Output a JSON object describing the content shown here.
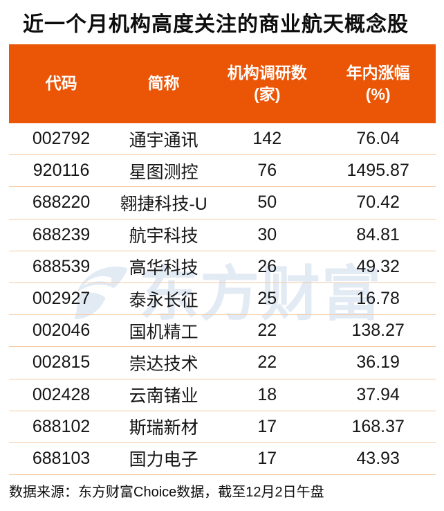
{
  "title": "近一个月机构高度关注的商业航天概念股",
  "chart_data": {
    "type": "table",
    "title": "近一个月机构高度关注的商业航天概念股",
    "columns": [
      {
        "label": "代码",
        "sub": ""
      },
      {
        "label": "简称",
        "sub": ""
      },
      {
        "label": "机构调研数",
        "sub": "(家)"
      },
      {
        "label": "年内涨幅",
        "sub": "(%)"
      }
    ],
    "rows": [
      [
        "002792",
        "通宇通讯",
        "142",
        "76.04"
      ],
      [
        "920116",
        "星图测控",
        "76",
        "1495.87"
      ],
      [
        "688220",
        "翱捷科技-U",
        "50",
        "70.42"
      ],
      [
        "688239",
        "航宇科技",
        "30",
        "84.81"
      ],
      [
        "688539",
        "高华科技",
        "26",
        "49.32"
      ],
      [
        "002927",
        "泰永长征",
        "25",
        "16.78"
      ],
      [
        "002046",
        "国机精工",
        "22",
        "138.27"
      ],
      [
        "002815",
        "崇达技术",
        "22",
        "36.19"
      ],
      [
        "002428",
        "云南锗业",
        "18",
        "37.94"
      ],
      [
        "688102",
        "斯瑞新材",
        "17",
        "168.37"
      ],
      [
        "688103",
        "国力电子",
        "17",
        "43.93"
      ]
    ],
    "source_note": "数据来源：东方财富Choice数据，截至12月2日午盘"
  },
  "watermark": {
    "text": "东方财富"
  },
  "colors": {
    "header_bg": "#EA5506",
    "header_text": "#FFFFFF",
    "row_divider": "#F4C9A2",
    "body_text": "#161616",
    "title_text": "#0D0D0D",
    "watermark": "#E2EAF4",
    "background": "#FFFFFF"
  }
}
